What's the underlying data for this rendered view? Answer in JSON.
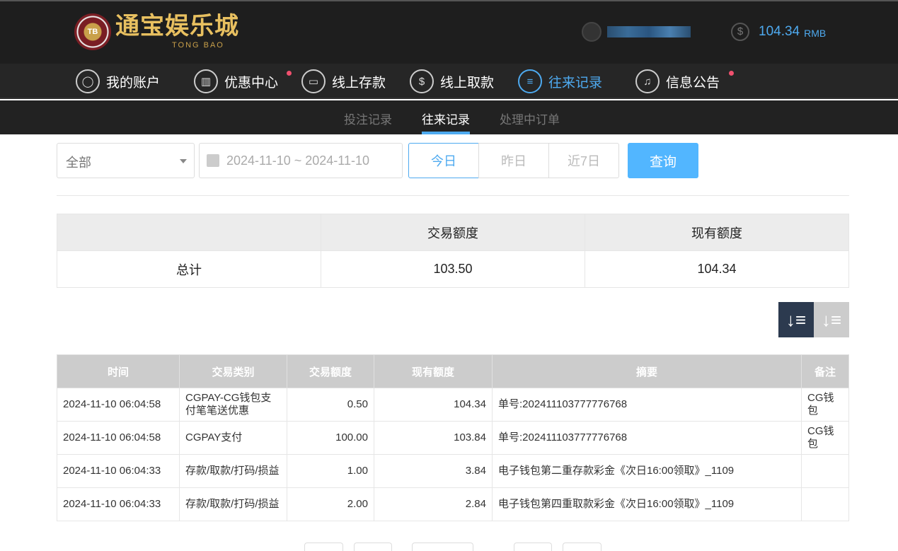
{
  "brand": {
    "logo_text": "通宝娱乐城",
    "logo_sub": "TONG BAO",
    "chip": "TB"
  },
  "balance": {
    "value": "104.34",
    "unit": "RMB",
    "accent": "#4eaaf0"
  },
  "nav": [
    {
      "label": "我的账户",
      "icon": "user-icon"
    },
    {
      "label": "优惠中心",
      "icon": "gift-icon",
      "dot": true
    },
    {
      "label": "线上存款",
      "icon": "deposit-icon"
    },
    {
      "label": "线上取款",
      "icon": "withdraw-icon"
    },
    {
      "label": "往来记录",
      "icon": "records-icon",
      "active": true
    },
    {
      "label": "信息公告",
      "icon": "bell-icon",
      "dot": true
    }
  ],
  "subnav": [
    {
      "label": "投注记录"
    },
    {
      "label": "往来记录",
      "active": true
    },
    {
      "label": "处理中订单"
    }
  ],
  "filter": {
    "type": "全部",
    "date_range": "2024-11-10 ~ 2024-11-10",
    "quick": [
      "今日",
      "昨日",
      "近7日"
    ],
    "search": "查询"
  },
  "summary": {
    "headers": [
      "",
      "交易额度",
      "现有额度"
    ],
    "row": [
      "总计",
      "103.50",
      "104.34"
    ]
  },
  "table": {
    "headers": [
      "时间",
      "交易类别",
      "交易额度",
      "现有额度",
      "摘要",
      "备注"
    ],
    "rows": [
      [
        "2024-11-10 06:04:58",
        "CGPAY-CG钱包支付笔笔送优惠",
        "0.50",
        "104.34",
        "单号:202411103777776768",
        "CG钱包"
      ],
      [
        "2024-11-10 06:04:58",
        "CGPAY支付",
        "100.00",
        "103.84",
        "单号:202411103777776768",
        "CG钱包"
      ],
      [
        "2024-11-10 06:04:33",
        "存款/取款/打码/损益",
        "1.00",
        "3.84",
        "电子钱包第二重存款彩金《次日16:00领取》_1109",
        ""
      ],
      [
        "2024-11-10 06:04:33",
        "存款/取款/打码/损益",
        "2.00",
        "2.84",
        "电子钱包第四重取款彩金《次日16:00领取》_1109",
        ""
      ]
    ]
  }
}
